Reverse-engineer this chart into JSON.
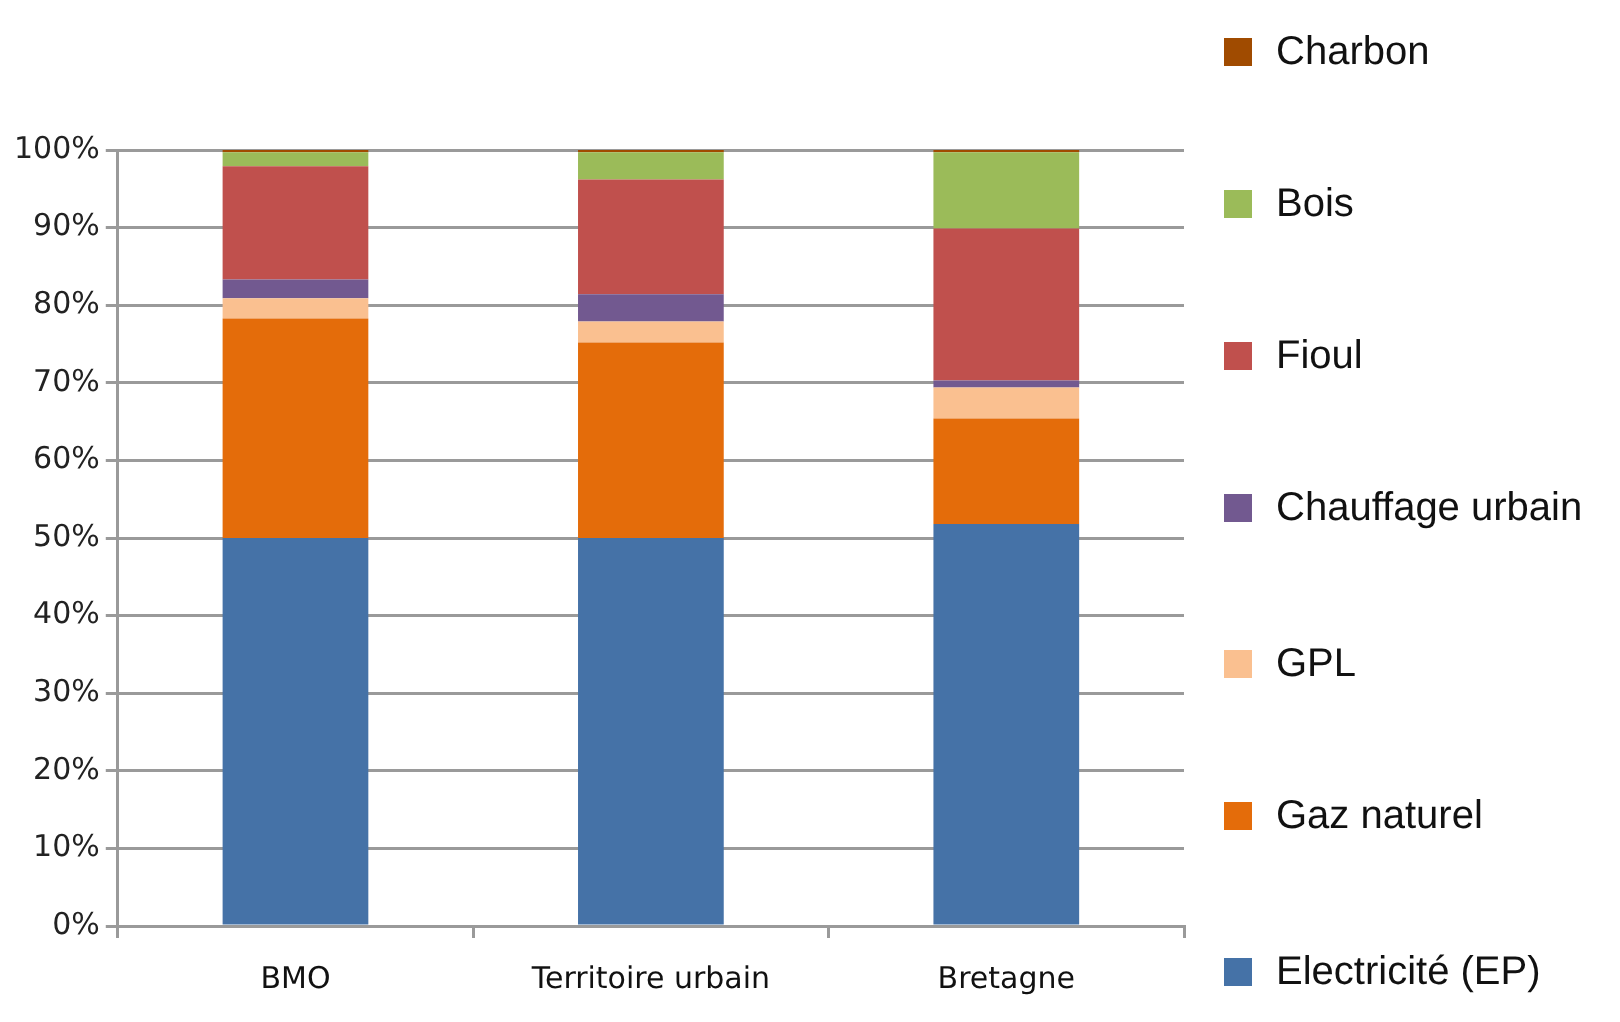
{
  "chart_data": {
    "type": "bar",
    "stacked": true,
    "categories": [
      "BMO",
      "Territoire urbain",
      "Bretagne"
    ],
    "series": [
      {
        "name": "Electricité (EP)",
        "color": "#4572a7",
        "values": [
          50,
          50,
          51.8
        ]
      },
      {
        "name": "Gaz naturel",
        "color": "#e46c0a",
        "values": [
          28.3,
          25.2,
          13.6
        ]
      },
      {
        "name": "GPL",
        "color": "#fac090",
        "values": [
          2.6,
          2.7,
          4.0
        ]
      },
      {
        "name": "Chauffage urbain",
        "color": "#725990",
        "values": [
          2.4,
          3.5,
          0.9
        ]
      },
      {
        "name": "Fioul",
        "color": "#c0504d",
        "values": [
          14.6,
          14.8,
          19.6
        ]
      },
      {
        "name": "Bois",
        "color": "#9bbb59",
        "values": [
          1.8,
          3.5,
          9.8
        ]
      },
      {
        "name": "Charbon",
        "color": "#a04b00",
        "values": [
          0.3,
          0.3,
          0.3
        ]
      }
    ],
    "ylim": [
      0,
      100
    ],
    "yticks": [
      {
        "value": 0,
        "label": "0%"
      },
      {
        "value": 10,
        "label": "10%"
      },
      {
        "value": 20,
        "label": "20%"
      },
      {
        "value": 30,
        "label": "30%"
      },
      {
        "value": 40,
        "label": "40%"
      },
      {
        "value": 50,
        "label": "50%"
      },
      {
        "value": 60,
        "label": "60%"
      },
      {
        "value": 70,
        "label": "70%"
      },
      {
        "value": 80,
        "label": "80%"
      },
      {
        "value": 90,
        "label": "90%"
      },
      {
        "value": 100,
        "label": "100%"
      }
    ],
    "grid": "y",
    "legend": "right"
  }
}
